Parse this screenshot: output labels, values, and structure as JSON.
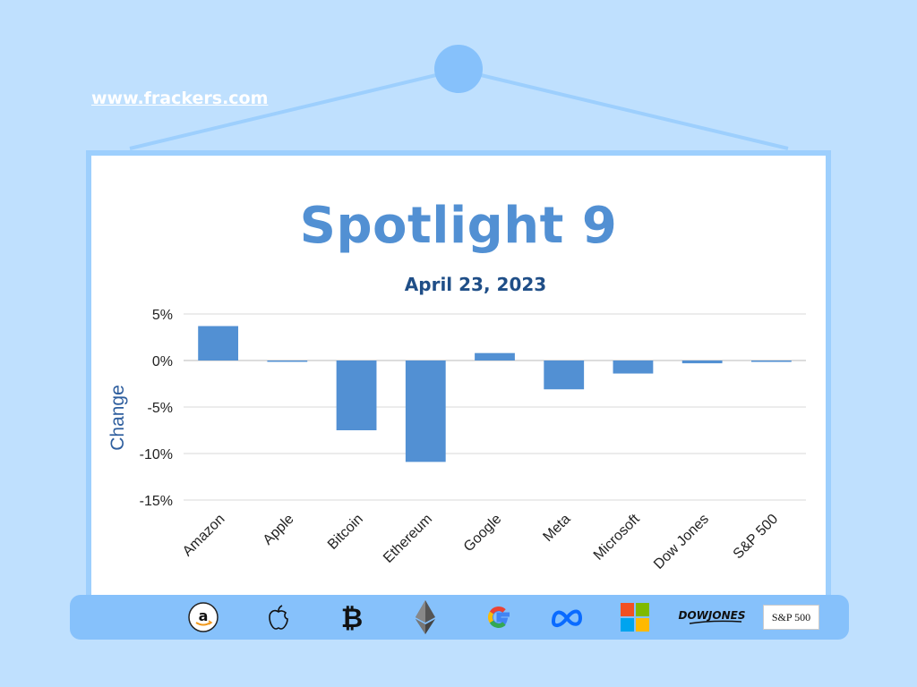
{
  "site": {
    "url": "www.frackers.com"
  },
  "colors": {
    "background": "#bfe0fe",
    "bar": "#5290d3",
    "title": "#5290d3",
    "subtitle": "#1f4e87",
    "axis_label": "#2e5e9e"
  },
  "chart_data": {
    "type": "bar",
    "title": "Spotlight 9",
    "subtitle": "April 23, 2023",
    "xlabel": "",
    "ylabel": "Change",
    "categories": [
      "Amazon",
      "Apple",
      "Bitcoin",
      "Ethereum",
      "Google",
      "Meta",
      "Microsoft",
      "Dow Jones",
      "S&P 500"
    ],
    "values": [
      3.7,
      -0.1,
      -7.5,
      -10.9,
      0.8,
      -3.1,
      -1.4,
      -0.3,
      -0.15
    ],
    "ylim": [
      -15,
      5
    ],
    "yticks": [
      5,
      0,
      -5,
      -10,
      -15
    ],
    "ytick_labels": [
      "5%",
      "0%",
      "-5%",
      "-10%",
      "-15%"
    ],
    "grid": true,
    "legend": "none"
  },
  "logos": [
    {
      "name": "amazon-logo-icon"
    },
    {
      "name": "apple-logo-icon"
    },
    {
      "name": "bitcoin-logo-icon"
    },
    {
      "name": "ethereum-logo-icon"
    },
    {
      "name": "google-logo-icon"
    },
    {
      "name": "meta-logo-icon"
    },
    {
      "name": "microsoft-logo-icon"
    },
    {
      "name": "dow-jones-logo-icon",
      "text": "DOWJONES"
    },
    {
      "name": "sp500-logo-icon",
      "text": "S&P 500"
    }
  ]
}
